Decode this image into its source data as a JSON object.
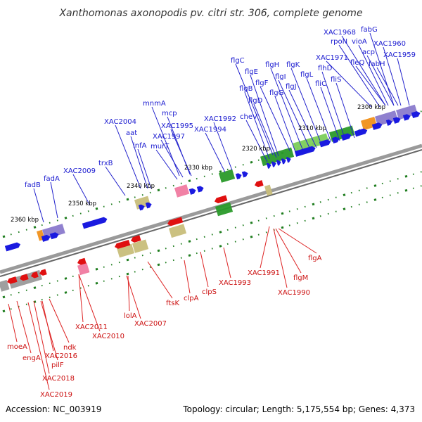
{
  "title": "Xanthomonas axonopodis pv. citri str. 306, complete genome",
  "footer": {
    "accession": "Accession: NC_003919",
    "summary": "Topology: circular; Length: 5,175,554 bp; Genes: 4,373"
  },
  "colors": {
    "backbone": "#8a8a8a",
    "tick": "#1e7d1e",
    "forward_gene": "#1a1ae0",
    "reverse_gene": "#e01010",
    "forward_label": "#1a1ad0",
    "reverse_label": "#cc1111",
    "forward_leader": "#2222cc",
    "reverse_leader": "#dd2222",
    "cog_green": "#2a9a2a",
    "cog_light_green": "#7ccd5a",
    "cog_orange": "#f0901a",
    "cog_purple": "#8a7acc",
    "cog_khaki": "#c8be7a",
    "cog_pink": "#f07aa0",
    "cog_grey": "#9a9a9a"
  },
  "kbp_labels": [
    "2300 kbp",
    "2310 kbp",
    "2320 kbp",
    "2330 kbp",
    "2340 kbp",
    "2350 kbp",
    "2360 kbp"
  ],
  "top_labels": [
    "fabG",
    "XAC1968",
    "rpoN",
    "vioA",
    "XAC1960",
    "XAC1959",
    "acp",
    "XAC1971",
    "fleQ",
    "fabH",
    "flgC",
    "flgH",
    "flgK",
    "flgE",
    "flgI",
    "flhD",
    "flgL",
    "flgF",
    "flgJ",
    "fliS",
    "flgB",
    "fliC",
    "flgG",
    "flgD",
    "cheV",
    "XAC1992",
    "XAC1994",
    "mnmA",
    "mcp",
    "XAC2004",
    "XAC1995",
    "aat",
    "XAC1997",
    "infA",
    "murT",
    "trxB",
    "XAC2009",
    "fadB",
    "fadA"
  ],
  "bottom_labels": [
    "flgA",
    "flgM",
    "XAC1991",
    "XAC1990",
    "XAC1993",
    "clpS",
    "clpA",
    "ftsK",
    "lolA",
    "XAC2007",
    "XAC2011",
    "XAC2010",
    "ndk",
    "XAC2016",
    "pilF",
    "moeA",
    "engA",
    "XAC2018",
    "XAC2019"
  ]
}
